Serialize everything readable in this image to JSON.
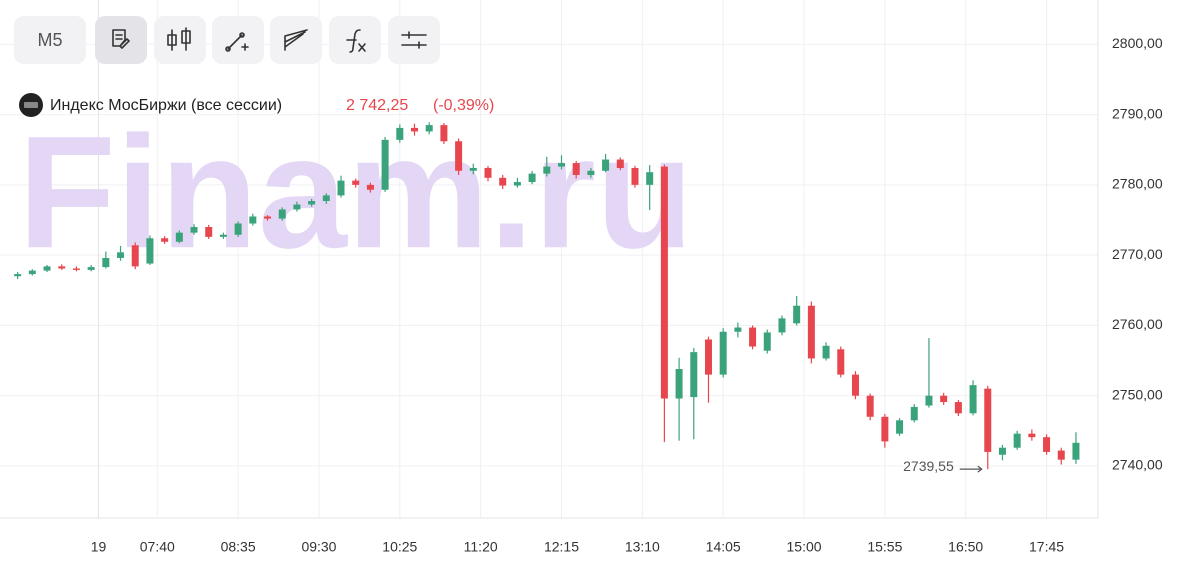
{
  "toolbar": {
    "timeframe": "M5"
  },
  "chart_data": {
    "type": "candlestick",
    "title": "Индекс МосБиржи (все сессии)",
    "last_price": {
      "value": 2742.25,
      "label": "2 742,25"
    },
    "change": {
      "value": -0.39,
      "label": "(-0,39%)"
    },
    "watermark": "Finam.ru",
    "x": [
      "06:05",
      "06:15",
      "06:25",
      "06:35",
      "06:45",
      "06:55",
      "07:05",
      "07:15",
      "07:25",
      "07:35",
      "07:45",
      "07:55",
      "08:05",
      "08:15",
      "08:25",
      "08:35",
      "08:45",
      "08:55",
      "09:05",
      "09:15",
      "09:25",
      "09:35",
      "09:45",
      "09:55",
      "10:05",
      "10:15",
      "10:25",
      "10:35",
      "10:45",
      "10:55",
      "11:05",
      "11:15",
      "11:25",
      "11:35",
      "11:45",
      "11:55",
      "12:05",
      "12:15",
      "12:25",
      "12:35",
      "12:45",
      "12:55",
      "13:05",
      "13:15",
      "13:25",
      "13:35",
      "13:45",
      "13:55",
      "14:05",
      "14:15",
      "14:25",
      "14:35",
      "14:45",
      "14:55",
      "15:05",
      "15:15",
      "15:25",
      "15:35",
      "15:45",
      "15:55",
      "16:05",
      "16:15",
      "16:25",
      "16:35",
      "16:45",
      "16:55",
      "17:05",
      "17:15",
      "17:25",
      "17:35",
      "17:45",
      "17:55",
      "18:05"
    ],
    "open": [
      2767.0,
      2767.3,
      2767.8,
      2768.4,
      2768.1,
      2767.9,
      2768.3,
      2769.6,
      2771.4,
      2768.8,
      2772.4,
      2771.9,
      2773.2,
      2774.0,
      2772.6,
      2772.9,
      2774.5,
      2775.5,
      2775.2,
      2776.5,
      2777.2,
      2777.7,
      2778.5,
      2780.6,
      2780.0,
      2779.3,
      2786.4,
      2788.1,
      2787.6,
      2788.5,
      2786.2,
      2782.0,
      2782.4,
      2781.0,
      2779.9,
      2780.4,
      2781.6,
      2782.6,
      2783.1,
      2781.4,
      2782.0,
      2783.6,
      2782.4,
      2780.0,
      2782.6,
      2749.6,
      2749.8,
      2758.0,
      2753.0,
      2759.1,
      2759.7,
      2756.4,
      2759.0,
      2760.3,
      2762.8,
      2755.3,
      2756.6,
      2753.0,
      2750.0,
      2747.0,
      2744.6,
      2746.5,
      2748.6,
      2750.0,
      2749.1,
      2747.5,
      2751.0,
      2741.6,
      2742.6,
      2744.6,
      2744.1,
      2742.2,
      2740.9
    ],
    "high": [
      2767.6,
      2768.0,
      2768.6,
      2768.7,
      2768.4,
      2768.6,
      2770.5,
      2771.3,
      2771.8,
      2772.8,
      2772.7,
      2773.5,
      2774.4,
      2774.3,
      2773.2,
      2774.8,
      2775.9,
      2775.7,
      2776.8,
      2777.6,
      2778.0,
      2778.8,
      2781.3,
      2780.9,
      2780.3,
      2786.8,
      2788.6,
      2788.7,
      2788.9,
      2788.8,
      2786.6,
      2783.0,
      2782.7,
      2781.4,
      2781.0,
      2782.0,
      2784.0,
      2784.2,
      2783.4,
      2782.4,
      2784.4,
      2783.9,
      2782.7,
      2782.8,
      2782.9,
      2755.4,
      2756.8,
      2758.4,
      2759.6,
      2760.4,
      2760.0,
      2759.4,
      2761.4,
      2764.2,
      2763.4,
      2757.6,
      2757.0,
      2753.5,
      2750.3,
      2747.4,
      2746.8,
      2748.8,
      2758.2,
      2750.4,
      2749.4,
      2752.2,
      2751.4,
      2743.0,
      2745.0,
      2745.2,
      2744.5,
      2742.6,
      2744.8
    ],
    "low": [
      2766.6,
      2767.1,
      2767.6,
      2767.9,
      2767.7,
      2767.7,
      2768.1,
      2769.2,
      2768.0,
      2768.6,
      2771.6,
      2771.7,
      2772.9,
      2772.3,
      2772.3,
      2772.6,
      2774.2,
      2774.9,
      2774.9,
      2776.2,
      2776.9,
      2777.3,
      2778.2,
      2779.6,
      2778.9,
      2779.0,
      2786.0,
      2787.0,
      2787.2,
      2785.8,
      2781.4,
      2781.5,
      2780.5,
      2779.4,
      2779.6,
      2780.1,
      2781.2,
      2782.2,
      2780.9,
      2781.0,
      2781.8,
      2782.1,
      2779.6,
      2776.4,
      2743.4,
      2743.6,
      2743.8,
      2749.0,
      2752.6,
      2758.3,
      2756.6,
      2756.0,
      2758.6,
      2760.0,
      2754.6,
      2755.0,
      2752.6,
      2749.5,
      2746.5,
      2742.6,
      2744.3,
      2746.2,
      2748.3,
      2748.7,
      2747.1,
      2747.2,
      2739.55,
      2740.8,
      2742.3,
      2743.6,
      2741.6,
      2740.2,
      2740.3
    ],
    "close": [
      2767.3,
      2767.8,
      2768.4,
      2768.1,
      2767.9,
      2768.3,
      2769.6,
      2770.4,
      2768.4,
      2772.4,
      2771.9,
      2773.2,
      2774.0,
      2772.6,
      2772.9,
      2774.5,
      2775.5,
      2775.2,
      2776.5,
      2777.2,
      2777.7,
      2778.5,
      2780.6,
      2780.0,
      2779.3,
      2786.4,
      2788.1,
      2787.6,
      2788.5,
      2786.2,
      2782.0,
      2782.4,
      2781.0,
      2779.9,
      2780.4,
      2781.6,
      2782.6,
      2783.1,
      2781.4,
      2782.0,
      2783.6,
      2782.4,
      2780.0,
      2781.8,
      2749.6,
      2753.8,
      2756.2,
      2753.0,
      2759.1,
      2759.7,
      2757.0,
      2759.0,
      2761.0,
      2762.8,
      2755.3,
      2757.1,
      2753.0,
      2750.0,
      2747.0,
      2743.5,
      2746.5,
      2748.4,
      2750.0,
      2749.1,
      2747.5,
      2751.5,
      2742.0,
      2742.6,
      2744.6,
      2744.1,
      2742.0,
      2740.9,
      2743.3
    ],
    "up_color": "#3aa37b",
    "down_color": "#e8464e",
    "xlim": [
      "05:53",
      "18:20"
    ],
    "xticks": [
      {
        "value": "07:00",
        "label": "19"
      },
      "07:40",
      "08:35",
      "09:30",
      "10:25",
      "11:20",
      "12:15",
      "13:10",
      "14:05",
      "15:00",
      "15:55",
      "16:50",
      "17:45"
    ],
    "ylim": [
      2732.6,
      2806.3
    ],
    "yticks": [
      {
        "value": 2740,
        "label": "2740,00"
      },
      {
        "value": 2750,
        "label": "2750,00"
      },
      {
        "value": 2760,
        "label": "2760,00"
      },
      {
        "value": 2770,
        "label": "2770,00"
      },
      {
        "value": 2780,
        "label": "2780,00"
      },
      {
        "value": 2790,
        "label": "2790,00"
      },
      {
        "value": 2800,
        "label": "2800,00"
      }
    ],
    "grid": true,
    "annotations": [
      {
        "value": 2739.55,
        "label": "2739,55"
      }
    ]
  }
}
